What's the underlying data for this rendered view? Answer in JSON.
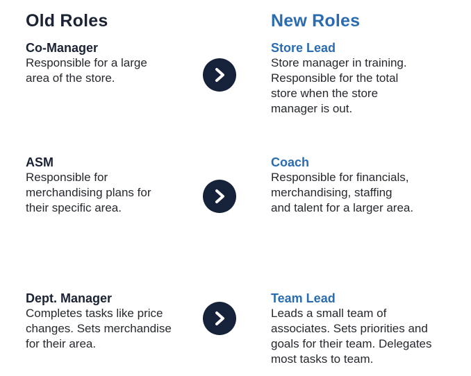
{
  "headings": {
    "old": "Old Roles",
    "new": "New Roles"
  },
  "rows": [
    {
      "old_title": "Co-Manager",
      "old_desc": [
        "Responsible for a large",
        "area of the store."
      ],
      "new_title": "Store Lead",
      "new_desc": [
        "Store manager in training.",
        "Responsible for the total",
        "store when the store",
        "manager is out."
      ],
      "arrow_icon": "chevron-right-icon"
    },
    {
      "old_title": "ASM",
      "old_desc": [
        "Responsible for",
        "merchandising plans for",
        "their specific area."
      ],
      "new_title": "Coach",
      "new_desc": [
        "Responsible for financials,",
        "merchandising, staffing",
        "and talent for a larger area."
      ],
      "arrow_icon": "chevron-right-icon"
    },
    {
      "old_title": "Dept. Manager",
      "old_desc": [
        "Completes tasks like price",
        "changes. Sets merchandise",
        "for their area."
      ],
      "new_title": "Team Lead",
      "new_desc": [
        "Leads a small team of",
        "associates. Sets priorities and",
        "goals for their team. Delegates",
        "most tasks to team."
      ],
      "arrow_icon": "chevron-right-icon"
    }
  ],
  "colors": {
    "dark_navy": "#16213a",
    "accent_blue": "#2b6cb0",
    "text": "#25282e"
  }
}
